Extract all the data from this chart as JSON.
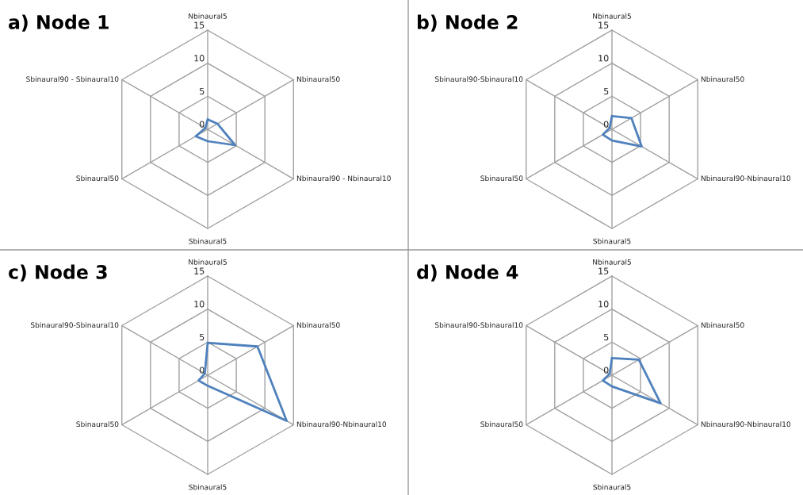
{
  "chart_data": [
    {
      "type": "radar",
      "title": "a) Node 1",
      "categories": [
        "Nbinaural5",
        "Nbinaural50",
        "Nbinaural90 - Nbinaural10",
        "Sbinaural5",
        "Sbinaural50",
        "Sbinaural90 - Sbinaural10"
      ],
      "series": [
        {
          "color": "#4f81bd",
          "values": [
            1.5,
            1.7,
            4.8,
            1.8,
            2.1,
            0.4
          ]
        }
      ],
      "ylim": [
        0,
        15
      ],
      "yticks": [
        0,
        5,
        10,
        15
      ],
      "grid": true,
      "marker": "none"
    },
    {
      "type": "radar",
      "title": "b) Node 2",
      "categories": [
        "Nbinaural5",
        "Nbinaural50",
        "Nbinaural90-Nbinaural10",
        "Sbinaural5",
        "Sbinaural50",
        "Sbinaural90-Sbinaural10"
      ],
      "series": [
        {
          "color": "#4f81bd",
          "values": [
            2.0,
            3.4,
            5.2,
            1.7,
            1.6,
            0.4
          ]
        }
      ],
      "ylim": [
        0,
        15
      ],
      "yticks": [
        0,
        5,
        10,
        15
      ],
      "grid": true,
      "marker": "none"
    },
    {
      "type": "radar",
      "title": "c) Node 3",
      "categories": [
        "Nbinaural5",
        "Nbinaural50",
        "Nbinaural90-Nbinaural10",
        "Sbinaural5",
        "Sbinaural50",
        "Sbinaural90-Sbinaural10"
      ],
      "series": [
        {
          "color": "#4f81bd",
          "values": [
            4.9,
            8.7,
            13.8,
            1.6,
            1.6,
            0.5
          ]
        }
      ],
      "ylim": [
        0,
        15
      ],
      "yticks": [
        0,
        5,
        10,
        15
      ],
      "grid": true,
      "marker": "none"
    },
    {
      "type": "radar",
      "title": "d) Node 4",
      "categories": [
        "Nbinaural5",
        "Nbinaural50",
        "Nbinaural90-Nbinaural10",
        "Sbinaural5",
        "Sbinaural50",
        "Sbinaural90-Sbinaural10"
      ],
      "series": [
        {
          "color": "#4f81bd",
          "values": [
            2.6,
            4.7,
            8.5,
            1.7,
            1.6,
            0.4
          ]
        }
      ],
      "ylim": [
        0,
        15
      ],
      "yticks": [
        0,
        5,
        10,
        15
      ],
      "grid": true,
      "marker": "none"
    }
  ]
}
